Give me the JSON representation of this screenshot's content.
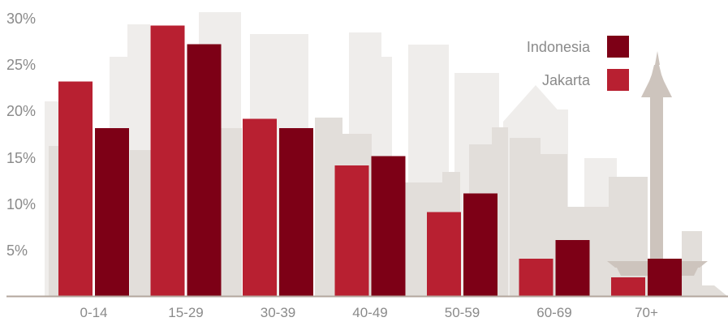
{
  "chart_data": {
    "type": "bar",
    "title": "",
    "xlabel": "",
    "ylabel": "",
    "categories": [
      "0-14",
      "15-29",
      "30-39",
      "40-49",
      "50-59",
      "60-69",
      "70+"
    ],
    "series": [
      {
        "name": "Jakarta",
        "color": "#b82031",
        "values": [
          23,
          29,
          19,
          14,
          9,
          4,
          2
        ]
      },
      {
        "name": "Indonesia",
        "color": "#7d0016",
        "values": [
          18,
          27,
          18,
          15,
          11,
          6,
          4
        ]
      }
    ],
    "ylim": [
      0,
      30
    ],
    "yticks": [
      "5%",
      "10%",
      "15%",
      "20%",
      "25%",
      "30%"
    ],
    "grid": false,
    "legend": {
      "placement": "top-right",
      "entries": [
        {
          "label": "Indonesia",
          "color": "#7d0016"
        },
        {
          "label": "Jakarta",
          "color": "#b82031"
        }
      ]
    },
    "background": "city skyline silhouette with monument",
    "axis_color": "#b3a69d",
    "text_color": "#8a8a8a"
  }
}
